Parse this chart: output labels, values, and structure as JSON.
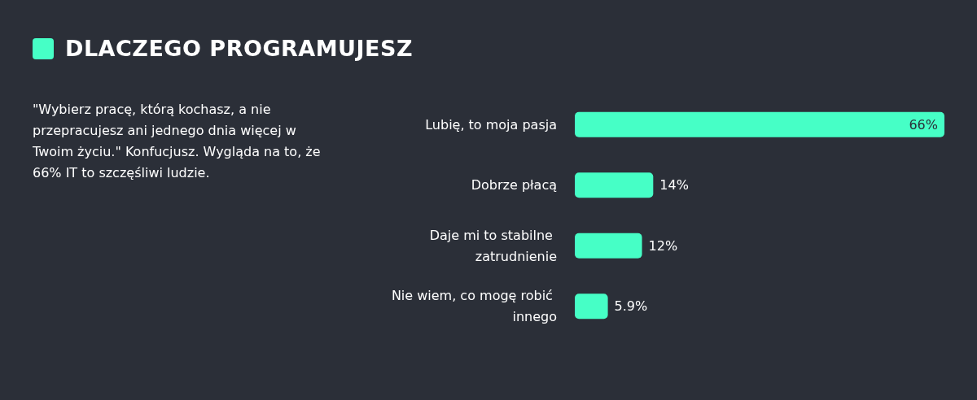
{
  "chart_data": {
    "type": "bar",
    "orientation": "horizontal",
    "title": "DLACZEGO PROGRAMUJESZ",
    "annotations": [
      "\"Wybierz pracę, którą kochasz, a nie przepracujesz ani jednego dnia więcej w Twoim życiu.\" Konfucjusz. Wygląda na to, że 66% IT to szczęśliwi ludzie."
    ],
    "categories": [
      "Lubię, to moja pasja",
      "Dobrze płacą",
      "Daje mi to stabilne zatrudnienie",
      "Nie wiem, co mogę robić innego"
    ],
    "values": [
      66,
      14,
      12,
      5.9
    ],
    "value_labels": [
      "66%",
      "14%",
      "12%",
      "5.9%"
    ],
    "color": "#46ffc6"
  }
}
